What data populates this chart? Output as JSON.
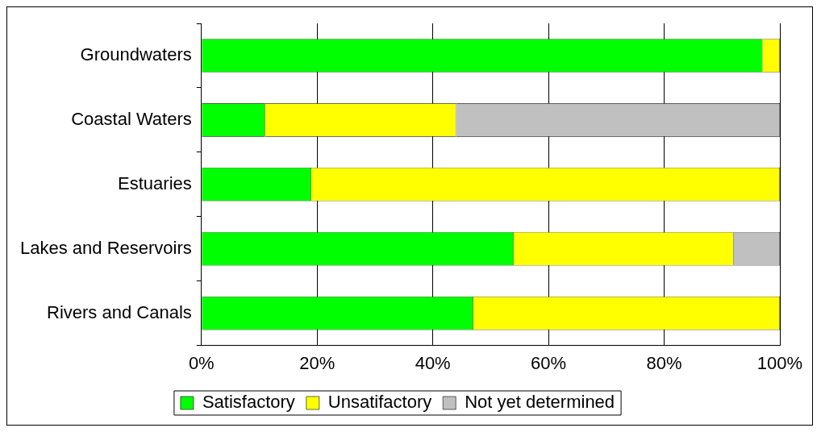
{
  "chart_data": {
    "type": "bar",
    "orientation": "horizontal",
    "stacked": true,
    "categories": [
      "Groundwaters",
      "Coastal Waters",
      "Estuaries",
      "Lakes and Reservoirs",
      "Rivers and Canals"
    ],
    "series": [
      {
        "name": "Satisfactory",
        "color": "#00ff00",
        "values": [
          97,
          11,
          19,
          54,
          47
        ]
      },
      {
        "name": "Unsatifactory",
        "color": "#ffff00",
        "values": [
          3,
          33,
          81,
          38,
          53
        ]
      },
      {
        "name": "Not yet determined",
        "color": "#c0c0c0",
        "values": [
          0,
          56,
          0,
          8,
          0
        ]
      }
    ],
    "xlim": [
      0,
      100
    ],
    "xticks": [
      {
        "value": 0,
        "label": "0%"
      },
      {
        "value": 20,
        "label": "20%"
      },
      {
        "value": 40,
        "label": "40%"
      },
      {
        "value": 60,
        "label": "60%"
      },
      {
        "value": 80,
        "label": "80%"
      },
      {
        "value": 100,
        "label": "100%"
      }
    ],
    "grid": "x",
    "legend": "bottom"
  }
}
